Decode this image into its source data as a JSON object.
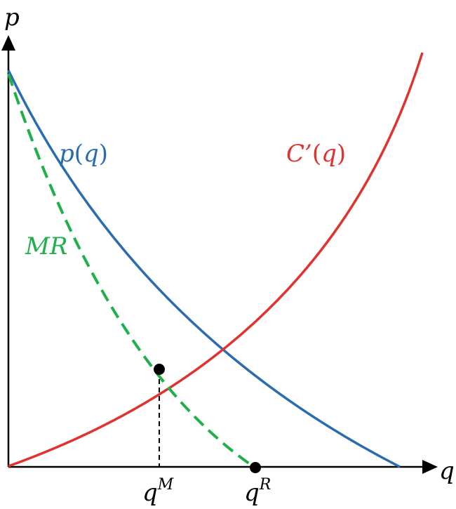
{
  "axes": {
    "y_label": "p",
    "x_label": "q"
  },
  "curves": {
    "demand": {
      "label_main": "p",
      "label_arg": "q",
      "color": "#2b6cb0"
    },
    "marginal_cost": {
      "label_main": "C’",
      "label_arg": "q",
      "color": "#e0322f"
    },
    "marginal_revenue": {
      "label": "MR",
      "color": "#1fb04a",
      "style": "dashed"
    }
  },
  "points": {
    "monopoly": {
      "label_base": "q",
      "label_sup": "M"
    },
    "root": {
      "label_base": "q",
      "label_sup": "R"
    }
  }
}
